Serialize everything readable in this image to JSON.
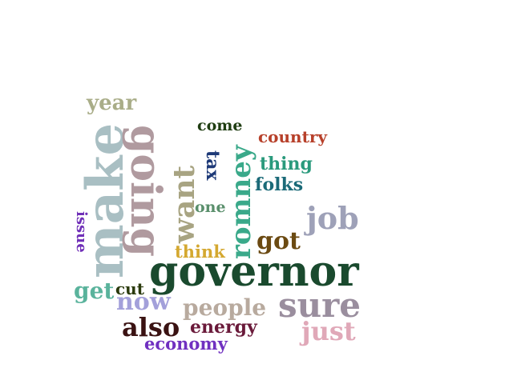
{
  "words": [
    {
      "text": "year",
      "color": "#a9ad88"
    },
    {
      "text": "come",
      "color": "#1f3d12"
    },
    {
      "text": "country",
      "color": "#b7402a"
    },
    {
      "text": "make",
      "color": "#a9bfc3"
    },
    {
      "text": "going",
      "color": "#b09a9f"
    },
    {
      "text": "want",
      "color": "#a8a482"
    },
    {
      "text": "tax",
      "color": "#1e3a78"
    },
    {
      "text": "romney",
      "color": "#3aa98a"
    },
    {
      "text": "thing",
      "color": "#2a9a7c"
    },
    {
      "text": "folks",
      "color": "#1b6a78"
    },
    {
      "text": "one",
      "color": "#5a8f6c"
    },
    {
      "text": "job",
      "color": "#9ea1b8"
    },
    {
      "text": "issue",
      "color": "#7030b8"
    },
    {
      "text": "got",
      "color": "#6b4a12"
    },
    {
      "text": "think",
      "color": "#d4a830"
    },
    {
      "text": "governor",
      "color": "#1a4a2e"
    },
    {
      "text": "get",
      "color": "#5ab39c"
    },
    {
      "text": "cut",
      "color": "#2a3a0c"
    },
    {
      "text": "now",
      "color": "#a3a0da"
    },
    {
      "text": "people",
      "color": "#b8aa9e"
    },
    {
      "text": "sure",
      "color": "#9a8e9e"
    },
    {
      "text": "also",
      "color": "#3a1212"
    },
    {
      "text": "energy",
      "color": "#6a1a3a"
    },
    {
      "text": "just",
      "color": "#e0a8b8"
    },
    {
      "text": "economy",
      "color": "#7030c0"
    }
  ]
}
